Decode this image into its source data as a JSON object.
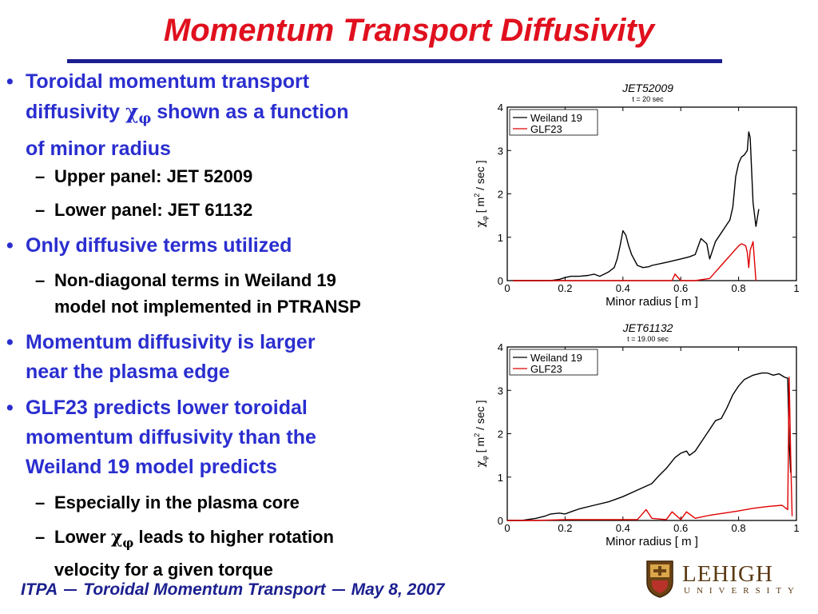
{
  "slide": {
    "title": "Momentum Transport Diffusivity"
  },
  "bullets": [
    {
      "lines": [
        "Toroidal momentum transport",
        "diffusivity",
        "shown as a function",
        "of minor radius"
      ],
      "sub": [
        "Upper panel: JET 52009",
        "Lower panel: JET 61132"
      ]
    },
    {
      "lines": [
        "Only diffusive terms utilized"
      ],
      "sub": [
        "Non-diagonal terms in Weiland 19",
        "model not implemented in PTRANSP"
      ]
    },
    {
      "lines": [
        "Momentum diffusivity is larger",
        "near the plasma edge"
      ]
    },
    {
      "lines": [
        "GLF23 predicts lower toroidal",
        "momentum diffusivity than the",
        "Weiland 19 model predicts"
      ],
      "sub": [
        "Especially in the plasma core",
        "Lower",
        "leads to higher rotation",
        "velocity for a given torque"
      ]
    }
  ],
  "symbols": {
    "chi": "χ",
    "phi": "φ",
    "bullet": "•",
    "dash": "–"
  },
  "footer": {
    "org": "ITPA",
    "topic": "Toroidal Momentum Transport",
    "date": "May 8, 2007"
  },
  "logo": {
    "name": "LEHIGH",
    "sub": "UNIVERSITY"
  },
  "colors": {
    "title": "#e0101e",
    "bullet": "#2a2ecf",
    "rule": "#1b1f8f",
    "weiland": "#000000",
    "glf": "#e00000"
  },
  "chart_data": [
    {
      "type": "line",
      "title": "JET52009",
      "subtitle": "t = 20 sec",
      "xlabel": "Minor radius [ m ]",
      "ylabel_pre": "χ",
      "ylabel_sub": "φ",
      "ylabel_mid": " [ m",
      "ylabel_sup": "2",
      "ylabel_post": " / sec ]",
      "xlim": [
        0,
        1
      ],
      "ylim": [
        0,
        4
      ],
      "xticks": [
        "0",
        "0.2",
        "0.4",
        "0.6",
        "0.8",
        "1"
      ],
      "yticks": [
        "0",
        "1",
        "2",
        "3",
        "4"
      ],
      "legend_position": "top-left",
      "series": [
        {
          "name": "Weiland 19",
          "color": "#000000",
          "x": [
            0.02,
            0.08,
            0.12,
            0.15,
            0.18,
            0.2,
            0.22,
            0.25,
            0.28,
            0.3,
            0.32,
            0.35,
            0.37,
            0.38,
            0.39,
            0.4,
            0.41,
            0.42,
            0.43,
            0.45,
            0.47,
            0.49,
            0.5,
            0.55,
            0.6,
            0.63,
            0.65,
            0.67,
            0.69,
            0.7,
            0.72,
            0.74,
            0.75,
            0.77,
            0.78,
            0.79,
            0.8,
            0.81,
            0.82,
            0.825,
            0.83,
            0.835,
            0.84,
            0.85,
            0.86,
            0.87
          ],
          "y": [
            0,
            0,
            0,
            0,
            0.03,
            0.07,
            0.1,
            0.1,
            0.12,
            0.15,
            0.1,
            0.2,
            0.3,
            0.5,
            0.8,
            1.15,
            1.05,
            0.8,
            0.6,
            0.35,
            0.3,
            0.32,
            0.35,
            0.42,
            0.5,
            0.55,
            0.6,
            0.97,
            0.85,
            0.5,
            0.9,
            1.1,
            1.2,
            1.4,
            1.7,
            2.4,
            2.7,
            2.85,
            2.9,
            2.95,
            3.0,
            3.43,
            3.3,
            1.8,
            1.25,
            1.65
          ]
        },
        {
          "name": "GLF23",
          "color": "#e00000",
          "x": [
            0.02,
            0.1,
            0.2,
            0.3,
            0.4,
            0.5,
            0.55,
            0.57,
            0.58,
            0.6,
            0.65,
            0.7,
            0.72,
            0.74,
            0.76,
            0.78,
            0.8,
            0.81,
            0.82,
            0.825,
            0.83,
            0.835,
            0.84,
            0.85,
            0.86
          ],
          "y": [
            0,
            0,
            0,
            0,
            0,
            0,
            0,
            0,
            0.15,
            0,
            0,
            0.05,
            0.2,
            0.35,
            0.5,
            0.65,
            0.8,
            0.85,
            0.82,
            0.8,
            0.65,
            0.3,
            0.7,
            0.9,
            0.0
          ]
        }
      ]
    },
    {
      "type": "line",
      "title": "JET61132",
      "subtitle": "t = 19.00 sec",
      "xlabel": "Minor radius [ m ]",
      "ylabel_pre": "χ",
      "ylabel_sub": "φ",
      "ylabel_mid": " [ m",
      "ylabel_sup": "2",
      "ylabel_post": " / sec ]",
      "xlim": [
        0,
        1
      ],
      "ylim": [
        0,
        4
      ],
      "xticks": [
        "0",
        "0.2",
        "0.4",
        "0.6",
        "0.8",
        "1"
      ],
      "yticks": [
        "0",
        "1",
        "2",
        "3",
        "4"
      ],
      "legend_position": "top-left",
      "series": [
        {
          "name": "Weiland 19",
          "color": "#000000",
          "x": [
            0.0,
            0.05,
            0.1,
            0.13,
            0.15,
            0.18,
            0.2,
            0.22,
            0.25,
            0.3,
            0.35,
            0.4,
            0.45,
            0.5,
            0.52,
            0.55,
            0.58,
            0.6,
            0.62,
            0.63,
            0.65,
            0.68,
            0.7,
            0.72,
            0.74,
            0.76,
            0.78,
            0.8,
            0.82,
            0.85,
            0.88,
            0.9,
            0.92,
            0.94,
            0.96,
            0.97,
            0.975,
            0.98
          ],
          "y": [
            0,
            0,
            0.05,
            0.1,
            0.15,
            0.17,
            0.15,
            0.2,
            0.27,
            0.35,
            0.43,
            0.55,
            0.7,
            0.85,
            1.0,
            1.2,
            1.45,
            1.55,
            1.6,
            1.5,
            1.6,
            1.9,
            2.1,
            2.3,
            2.35,
            2.6,
            2.9,
            3.1,
            3.25,
            3.35,
            3.4,
            3.4,
            3.35,
            3.38,
            3.3,
            3.28,
            1.8,
            1.1
          ]
        },
        {
          "name": "GLF23",
          "color": "#e00000",
          "x": [
            0.0,
            0.1,
            0.2,
            0.3,
            0.45,
            0.48,
            0.5,
            0.55,
            0.57,
            0.6,
            0.62,
            0.65,
            0.7,
            0.75,
            0.8,
            0.85,
            0.9,
            0.95,
            0.97,
            0.975,
            0.98,
            0.985
          ],
          "y": [
            0,
            0,
            0.02,
            0.02,
            0.02,
            0.25,
            0.05,
            0.02,
            0.2,
            0.02,
            0.2,
            0.05,
            0.12,
            0.17,
            0.22,
            0.28,
            0.32,
            0.35,
            0.25,
            3.3,
            1.5,
            0.1
          ]
        }
      ]
    }
  ]
}
